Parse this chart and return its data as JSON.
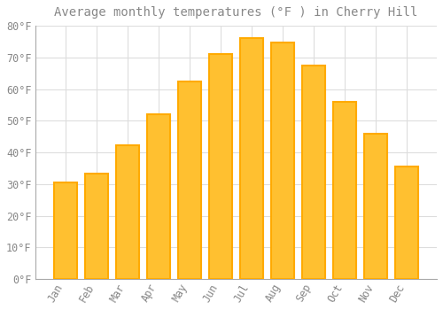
{
  "title": "Average monthly temperatures (°F ) in Cherry Hill",
  "months": [
    "Jan",
    "Feb",
    "Mar",
    "Apr",
    "May",
    "Jun",
    "Jul",
    "Aug",
    "Sep",
    "Oct",
    "Nov",
    "Dec"
  ],
  "values": [
    30.5,
    33.3,
    42.3,
    52.0,
    62.5,
    71.0,
    76.0,
    74.7,
    67.5,
    56.0,
    46.0,
    35.5
  ],
  "bar_color_inner": "#FFC030",
  "bar_color_outer": "#FFAA00",
  "background_color": "#FFFFFF",
  "plot_bg_color": "#FFFFFF",
  "grid_color": "#DDDDDD",
  "text_color": "#888888",
  "spine_color": "#AAAAAA",
  "ylim": [
    0,
    80
  ],
  "yticks": [
    0,
    10,
    20,
    30,
    40,
    50,
    60,
    70,
    80
  ],
  "title_fontsize": 10,
  "tick_fontsize": 8.5
}
